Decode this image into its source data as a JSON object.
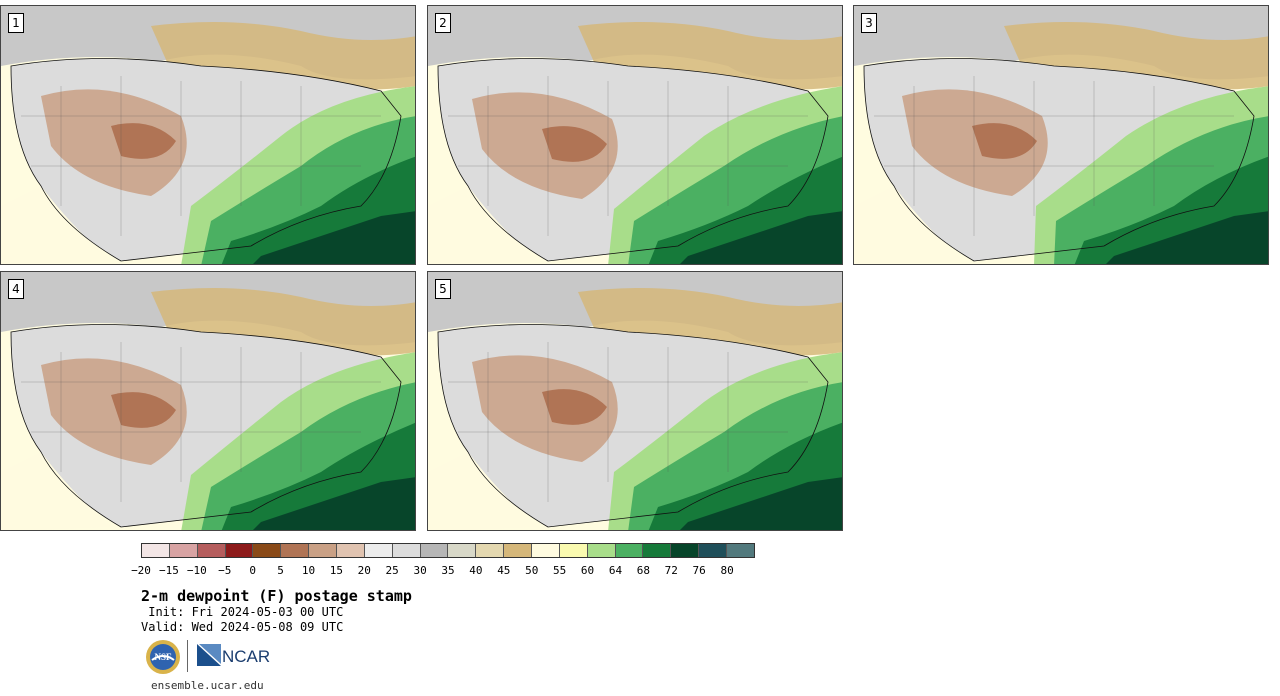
{
  "panels": [
    {
      "label": "1"
    },
    {
      "label": "2"
    },
    {
      "label": "3"
    },
    {
      "label": "4"
    },
    {
      "label": "5"
    }
  ],
  "colorbar": {
    "colors": [
      "#f3e6e6",
      "#d8a3a3",
      "#b55d5d",
      "#8d1b1b",
      "#8a4a18",
      "#b07455",
      "#c9a085",
      "#e0c3b0",
      "#ececec",
      "#dcdcdc",
      "#b6b6b6",
      "#d8d8c8",
      "#e4d8b0",
      "#d5b77a",
      "#fffbe0",
      "#fafab0",
      "#a8dd8a",
      "#4bb062",
      "#167a3a",
      "#07452a",
      "#1f4f5a",
      "#52797d"
    ],
    "tick_labels": [
      "−20",
      "−15",
      "−10",
      "−5",
      "0",
      "5",
      "10",
      "15",
      "20",
      "25",
      "30",
      "35",
      "40",
      "45",
      "50",
      "55",
      "60",
      "64",
      "68",
      "72",
      "76",
      "80"
    ]
  },
  "title": "2-m dewpoint (F) postage stamp",
  "init": " Init: Fri 2024-05-03 00 UTC",
  "valid": "Valid: Wed 2024-05-08 09 UTC",
  "logos": {
    "nsf": "NSF",
    "ncar": "NCAR"
  },
  "url": "ensemble.ucar.edu"
}
